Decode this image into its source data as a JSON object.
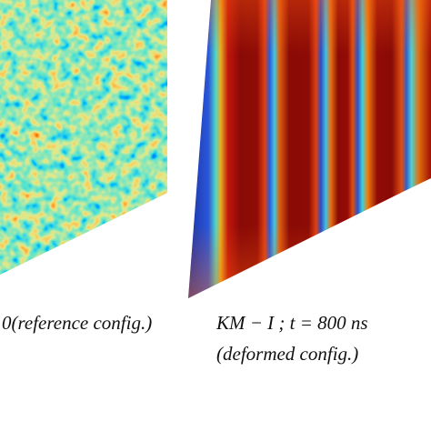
{
  "panels": [
    {
      "caption": [
        "0(reference config.)"
      ]
    },
    {
      "caption": [
        "KM − I ; t = 800 ns",
        "(deformed config.)"
      ]
    }
  ]
}
